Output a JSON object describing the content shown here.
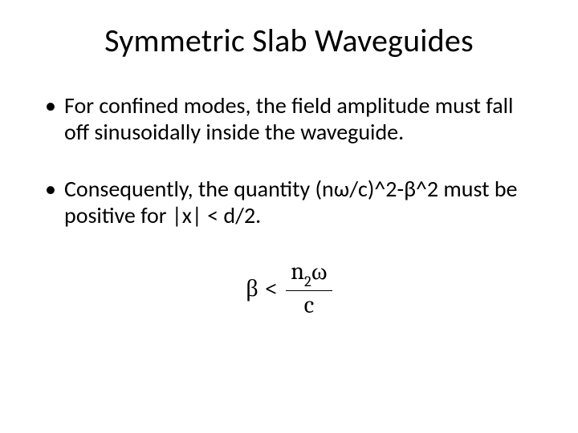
{
  "slide": {
    "title": "Symmetric Slab Waveguides",
    "bullets": [
      "For confined modes, the field amplitude must fall off sinusoidally inside the waveguide.",
      "Consequently, the quantity (nω/c)^2-β^2 must be positive for |x| < d/2."
    ],
    "equation": {
      "lhs": "β",
      "relation": "<",
      "numerator_n": "n",
      "numerator_sub": "2",
      "numerator_omega": "ω",
      "denominator": "c"
    }
  },
  "style": {
    "background_color": "#ffffff",
    "text_color": "#000000",
    "title_fontsize": 40,
    "body_fontsize": 28,
    "equation_fontsize": 30,
    "title_font": "Calibri",
    "equation_font": "Cambria"
  }
}
